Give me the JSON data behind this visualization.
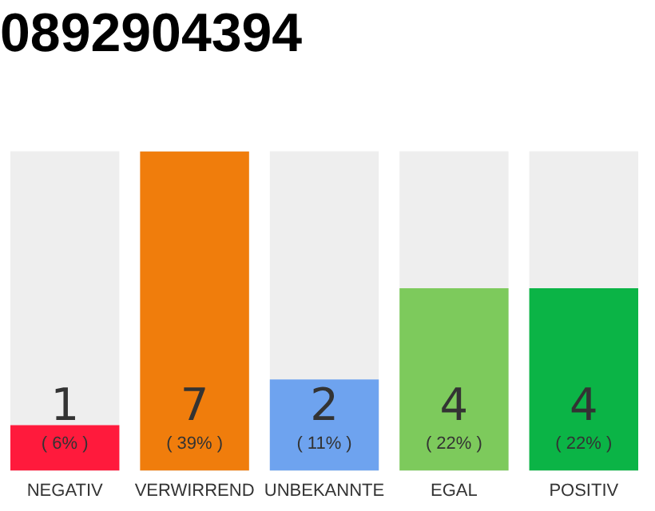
{
  "chart_data": {
    "type": "bar",
    "title": "0892904394",
    "categories": [
      "NEGATIV",
      "VERWIRREND",
      "UNBEKANNTE",
      "EGAL",
      "POSITIV"
    ],
    "values": [
      1,
      7,
      2,
      4,
      4
    ],
    "colors": [
      "#ff1a3c",
      "#f07d0c",
      "#6ea3ef",
      "#7dca5c",
      "#0bb446"
    ],
    "ylim": [
      0,
      7
    ],
    "tick_labels": "x",
    "grid": false,
    "legend": false,
    "data_labels": true,
    "annotations": [
      {
        "text": "( 6% )",
        "x": "NEGATIV",
        "y": 0
      },
      {
        "text": "( 39% )",
        "x": "VERWIRREND",
        "y": 0
      },
      {
        "text": "( 11% )",
        "x": "UNBEKANNTE",
        "y": 0
      },
      {
        "text": "( 22% )",
        "x": "EGAL",
        "y": 0
      },
      {
        "text": "( 22% )",
        "x": "POSITIV",
        "y": 0
      }
    ]
  }
}
